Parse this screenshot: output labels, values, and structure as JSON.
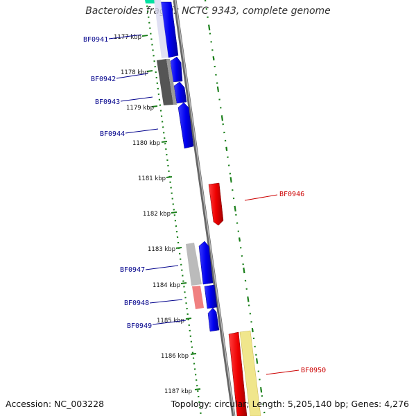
{
  "title": "Bacteroides fragilis NCTC 9343, complete genome",
  "accession_text": "Accession: NC_003228",
  "summary_text": "Topology: circular; Length: 5,205,140 bp; Genes: 4,276",
  "colors": {
    "forward_cds": "#0000ee",
    "reverse_cds": "#ee0000",
    "backbone": "#888888",
    "tick": "#1a7f1a",
    "forward_label": "#00008b",
    "reverse_label": "#cc0000",
    "highlight_cyan": "#00e0a0",
    "light_red": "#f08080",
    "pale_yellow": "#f0e68c"
  },
  "kbp_ticks": [
    "1177 kbp",
    "1178 kbp",
    "1179 kbp",
    "1180 kbp",
    "1181 kbp",
    "1182 kbp",
    "1183 kbp",
    "1184 kbp",
    "1185 kbp",
    "1186 kbp",
    "1187 kbp"
  ],
  "gene_labels": [
    {
      "text": "BF0941",
      "strand": "forward"
    },
    {
      "text": "BF0942",
      "strand": "forward"
    },
    {
      "text": "BF0943",
      "strand": "forward"
    },
    {
      "text": "BF0944",
      "strand": "forward"
    },
    {
      "text": "BF0946",
      "strand": "reverse"
    },
    {
      "text": "BF0947",
      "strand": "forward"
    },
    {
      "text": "BF0948",
      "strand": "forward"
    },
    {
      "text": "BF0949",
      "strand": "forward"
    },
    {
      "text": "BF0950",
      "strand": "reverse"
    }
  ]
}
